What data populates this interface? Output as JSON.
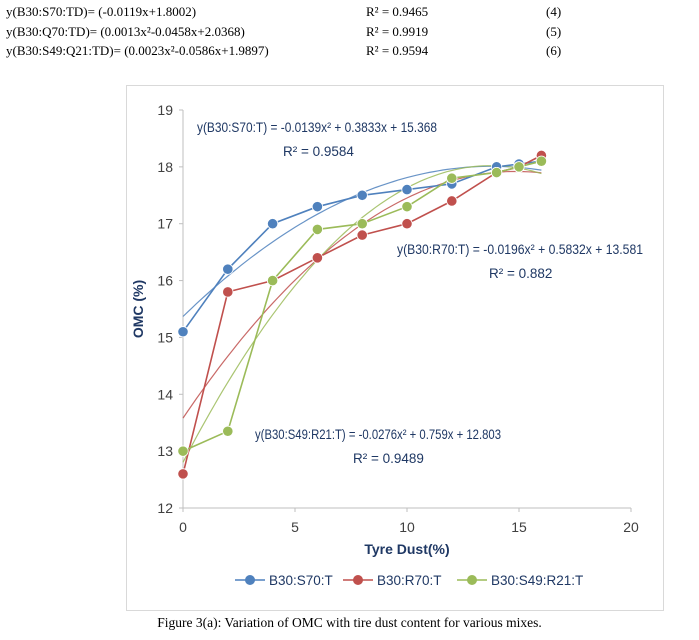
{
  "equations": [
    {
      "text": "y(B30:S70:TD)= (-0.0119x+1.8002)",
      "r2": "R² = 0.9465",
      "number": "(4)"
    },
    {
      "text": "y(B30:Q70:TD)= (0.0013x²-0.0458x+2.0368)",
      "r2": "R² = 0.9919",
      "number": "(5)"
    },
    {
      "text": "y(B30:S49:Q21:TD)= (0.0023x²-0.0586x+1.9897)",
      "r2": "R² = 0.9594",
      "number": "(6)"
    }
  ],
  "caption": "Figure 3(a): Variation of OMC with tire dust content for various mixes.",
  "chart_data": {
    "type": "line",
    "xlabel": "Tyre Dust(%)",
    "ylabel": "OMC (%)",
    "xlim": [
      0,
      20
    ],
    "ylim": [
      12,
      19
    ],
    "xticks": [
      0,
      5,
      10,
      15,
      20
    ],
    "yticks": [
      12,
      13,
      14,
      15,
      16,
      17,
      18,
      19
    ],
    "grid": false,
    "legend_position": "bottom",
    "series": [
      {
        "name": "B30:S70:T",
        "color": "#4f81bd",
        "x": [
          0,
          2,
          4,
          6,
          8,
          10,
          12,
          14,
          15,
          16
        ],
        "y": [
          15.1,
          16.2,
          17.0,
          17.3,
          17.5,
          17.6,
          17.7,
          18.0,
          18.05,
          18.1
        ],
        "trend": [
          -0.0139,
          0.3833,
          15.368
        ]
      },
      {
        "name": "B30:R70:T",
        "color": "#c0504d",
        "x": [
          0,
          2,
          4,
          6,
          8,
          10,
          12,
          14,
          15,
          16
        ],
        "y": [
          12.6,
          15.8,
          16.0,
          16.4,
          16.8,
          17.0,
          17.4,
          17.9,
          18.0,
          18.2
        ],
        "trend": [
          -0.0196,
          0.5832,
          13.581
        ]
      },
      {
        "name": "B30:S49:R21:T",
        "color": "#9bbb59",
        "x": [
          0,
          2,
          4,
          6,
          8,
          10,
          12,
          14,
          15,
          16
        ],
        "y": [
          13.0,
          13.35,
          16.0,
          16.9,
          17.0,
          17.3,
          17.8,
          17.9,
          18.0,
          18.1
        ],
        "trend": [
          -0.0276,
          0.759,
          12.803
        ]
      }
    ],
    "annotations": [
      {
        "equation": "y(B30:S70:T) = -0.0139x² + 0.3833x + 15.368",
        "r2": "R² = 0.9584"
      },
      {
        "equation": "y(B30:R70:T) = -0.0196x² + 0.5832x + 13.581",
        "r2": "R² = 0.882"
      },
      {
        "equation": "y(B30:S49:R21:T) = -0.0276x² + 0.759x + 12.803",
        "r2": "R² = 0.9489"
      }
    ]
  }
}
